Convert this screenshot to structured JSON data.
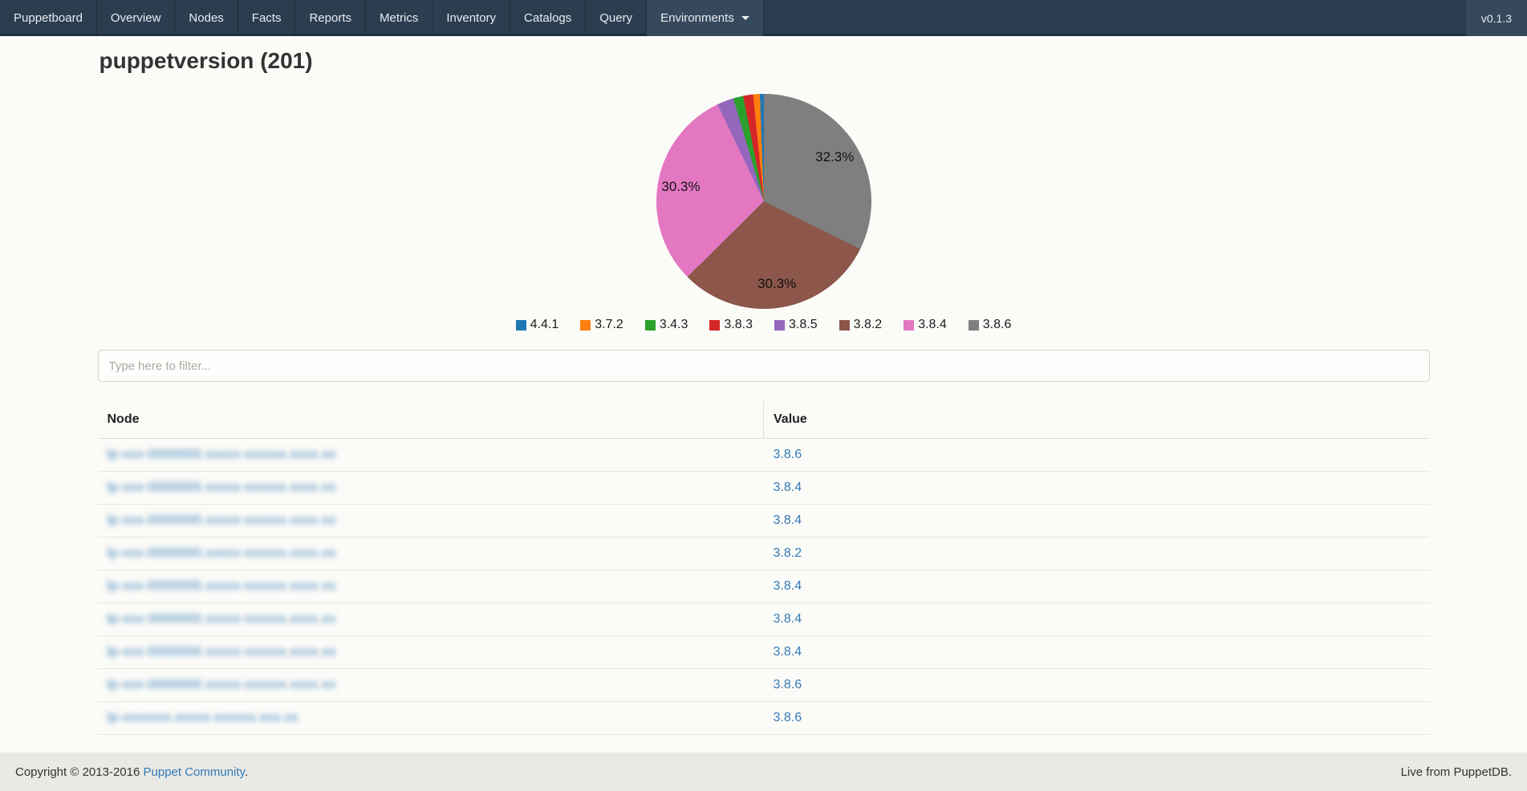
{
  "navbar": {
    "brand": "Puppetboard",
    "items": [
      "Overview",
      "Nodes",
      "Facts",
      "Reports",
      "Metrics",
      "Inventory",
      "Catalogs",
      "Query"
    ],
    "dropdown_label": "Environments",
    "version": "v0.1.3"
  },
  "page": {
    "title": "puppetversion (201)"
  },
  "chart_data": {
    "type": "pie",
    "title": "",
    "legend_position": "bottom",
    "labels": [
      "4.4.1",
      "3.7.2",
      "3.4.3",
      "3.8.3",
      "3.8.5",
      "3.8.2",
      "3.8.4",
      "3.8.6"
    ],
    "values": [
      1,
      2,
      3,
      3,
      5,
      61,
      61,
      65
    ],
    "percents": [
      0.5,
      1.0,
      1.5,
      1.5,
      2.5,
      30.3,
      30.3,
      32.3
    ],
    "colors": [
      "#1f77b4",
      "#ff7f0e",
      "#2ca02c",
      "#d62728",
      "#9467bd",
      "#8c564b",
      "#e377c2",
      "#7f7f7f"
    ],
    "clockwise_order_from_top": [
      7,
      5,
      6,
      4,
      2,
      3,
      1,
      0
    ],
    "shown_percent_labels": [
      {
        "index": 7,
        "text": "32.3%"
      },
      {
        "index": 5,
        "text": "30.3%"
      },
      {
        "index": 6,
        "text": "30.3%"
      }
    ]
  },
  "filter": {
    "placeholder": "Type here to filter..."
  },
  "table": {
    "columns": [
      "Node",
      "Value"
    ],
    "rows": [
      {
        "node_masked": "lp-xxx-0000000.xxxxx-xxxxxx.xxxx.xx",
        "value": "3.8.6"
      },
      {
        "node_masked": "lp-xxx-0000000.xxxxx-xxxxxx.xxxx.xx",
        "value": "3.8.4"
      },
      {
        "node_masked": "lp-xxx-0000000.xxxxx-xxxxxx.xxxx.xx",
        "value": "3.8.4"
      },
      {
        "node_masked": "lp-xxx-0000000.xxxxx-xxxxxx.xxxx.xx",
        "value": "3.8.2"
      },
      {
        "node_masked": "lp-xxx-0000000.xxxxx-xxxxxx.xxxx.xx",
        "value": "3.8.4"
      },
      {
        "node_masked": "lp-xxx-0000000.xxxxx-xxxxxx.xxxx.xx",
        "value": "3.8.4"
      },
      {
        "node_masked": "lp-xxx-0000000.xxxxx-xxxxxx.xxxx.xx",
        "value": "3.8.4"
      },
      {
        "node_masked": "lp-xxx-0000000.xxxxx-xxxxxx.xxxx.xx",
        "value": "3.8.6"
      },
      {
        "node_masked": "lp-xxxxxxx.xxxxx-xxxxxx.xxx.xx",
        "value": "3.8.6"
      }
    ]
  },
  "footer": {
    "copyright_prefix": "Copyright © 2013-2016 ",
    "copyright_link": "Puppet Community",
    "copyright_suffix": ".",
    "right_text": "Live from PuppetDB."
  }
}
